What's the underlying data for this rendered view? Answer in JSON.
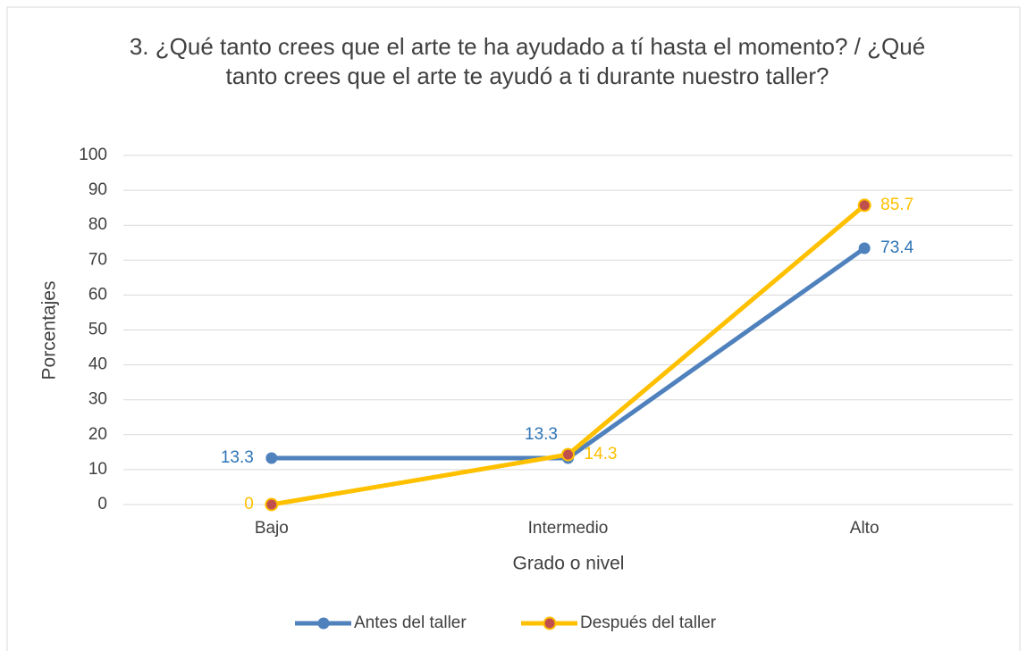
{
  "chart_data": {
    "type": "line",
    "title": "3. ¿Qué tanto crees que el arte te ha ayudado a tí hasta el momento? / ¿Qué tanto crees que el arte te ayudó a ti durante nuestro taller?",
    "x_label": "Grado o nivel",
    "y_label": "Porcentajes",
    "categories": [
      "Bajo",
      "Intermedio",
      "Alto"
    ],
    "series": [
      {
        "name": "Antes del taller",
        "color": "#4f81bd",
        "values": [
          13.3,
          13.3,
          73.4
        ]
      },
      {
        "name": "Después del taller",
        "color": "#ffc000",
        "marker_color": "#c0504d",
        "values": [
          0,
          14.3,
          85.7
        ]
      }
    ],
    "ylim": [
      0,
      100
    ],
    "yticks": [
      0,
      10,
      20,
      30,
      40,
      50,
      60,
      70,
      80,
      90,
      100
    ],
    "grid": true,
    "legend": "bottom"
  }
}
